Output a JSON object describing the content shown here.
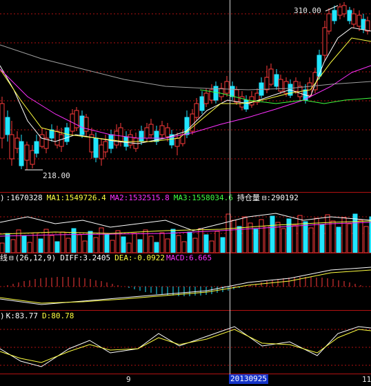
{
  "price_panel": {
    "high_label": "310.00",
    "low_label": "218.00"
  },
  "volume_panel": {
    "prefix": ")",
    "vol_value": ":1670328",
    "ma1": "MA1:1549726.4",
    "ma2": "MA2:1532515.8",
    "ma3": "MA3:1558034.6",
    "hold_label": "持仓量",
    "hold_icon": "⊟",
    "hold_value": ":290192"
  },
  "macd_panel": {
    "prefix": "线",
    "icon": "⊟",
    "params": "(26,12,9)",
    "diff": "DIFF:3.2405",
    "dea": "DEA:-0.0922",
    "macd": "MACD:6.665"
  },
  "kd_panel": {
    "prefix": ")",
    "k": "K:83.77",
    "d": "D:80.78"
  },
  "x_axis": {
    "left_label": "9",
    "cursor_date": "20130925",
    "right_label": "11"
  },
  "colors": {
    "up": "#ff3b3b",
    "down": "#22e5ff",
    "ma_white": "#ffffff",
    "ma_yellow": "#ffff40",
    "ma_magenta": "#ff30ff",
    "ma_green": "#40ff40",
    "ma_gray": "#a0a0a0",
    "grid": "#b31212"
  }
}
